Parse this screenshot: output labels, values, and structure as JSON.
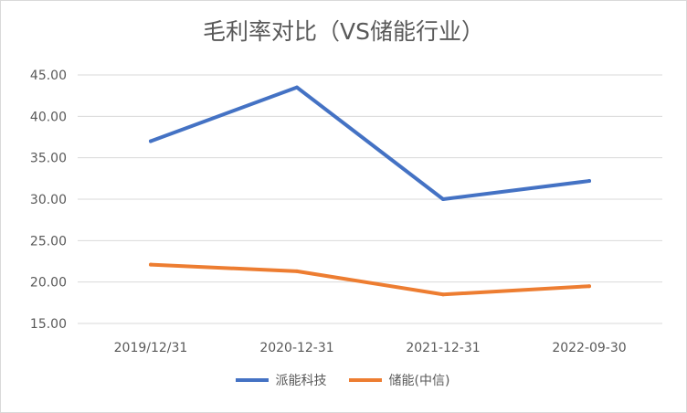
{
  "chart_data": {
    "type": "line",
    "title": "毛利率对比（VS储能行业）",
    "categories": [
      "2019/12/31",
      "2020-12-31",
      "2021-12-31",
      "2022-09-30"
    ],
    "series": [
      {
        "name": "派能科技",
        "values": [
          37.0,
          43.5,
          30.0,
          32.2
        ],
        "color": "#4472c4"
      },
      {
        "name": "储能(中信)",
        "values": [
          22.1,
          21.3,
          18.5,
          19.5
        ],
        "color": "#ed7d31"
      }
    ],
    "yticks": [
      "15.00",
      "20.00",
      "25.00",
      "30.00",
      "35.00",
      "40.00",
      "45.00"
    ],
    "ylim": [
      15,
      45
    ],
    "grid": true,
    "legend_position": "bottom"
  }
}
